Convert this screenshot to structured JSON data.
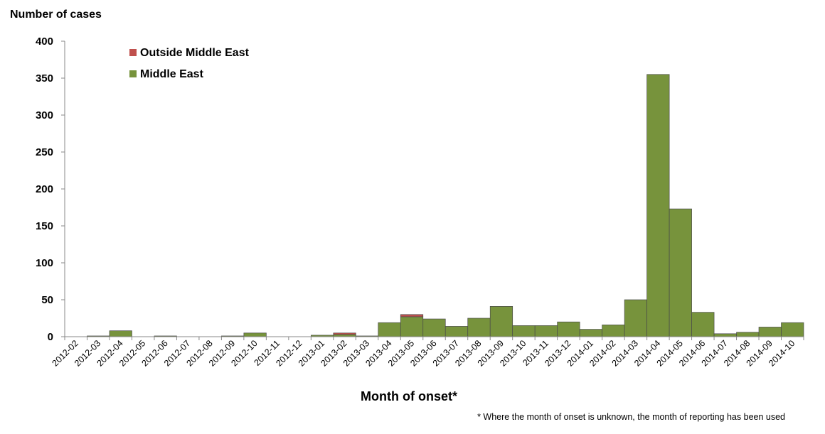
{
  "chart_data": {
    "type": "bar",
    "stacked": true,
    "ylabel": "Number of cases",
    "xlabel": "Month of onset*",
    "footnote": "* Where the month of onset is unknown, the month of reporting has been used",
    "ylim": [
      0,
      400
    ],
    "yticks": [
      0,
      50,
      100,
      150,
      200,
      250,
      300,
      350,
      400
    ],
    "grid": false,
    "legend_position": "top-left",
    "categories": [
      "2012-02",
      "2012-03",
      "2012-04",
      "2012-05",
      "2012-06",
      "2012-07",
      "2012-08",
      "2012-09",
      "2012-10",
      "2012-11",
      "2012-12",
      "2013-01",
      "2013-02",
      "2013-03",
      "2013-04",
      "2013-05",
      "2013-06",
      "2013-07",
      "2013-08",
      "2013-09",
      "2013-10",
      "2013-11",
      "2013-12",
      "2014-01",
      "2014-02",
      "2014-03",
      "2014-04",
      "2014-05",
      "2014-06",
      "2014-07",
      "2014-08",
      "2014-09",
      "2014-10"
    ],
    "series": [
      {
        "name": "Middle East",
        "color": "#77933c",
        "values": [
          0,
          1,
          8,
          0,
          1,
          0,
          0,
          1,
          5,
          0,
          0,
          2,
          3,
          1,
          19,
          27,
          24,
          14,
          25,
          41,
          15,
          15,
          20,
          10,
          16,
          50,
          355,
          173,
          33,
          4,
          6,
          13,
          19
        ]
      },
      {
        "name": "Outside Middle East",
        "color": "#c0504d",
        "values": [
          0,
          0,
          0,
          0,
          0,
          0,
          0,
          0,
          0,
          0,
          0,
          0,
          2,
          0,
          0,
          3,
          0,
          0,
          0,
          0,
          0,
          0,
          0,
          0,
          0,
          0,
          0,
          0,
          0,
          0,
          0,
          0,
          0
        ]
      }
    ]
  }
}
